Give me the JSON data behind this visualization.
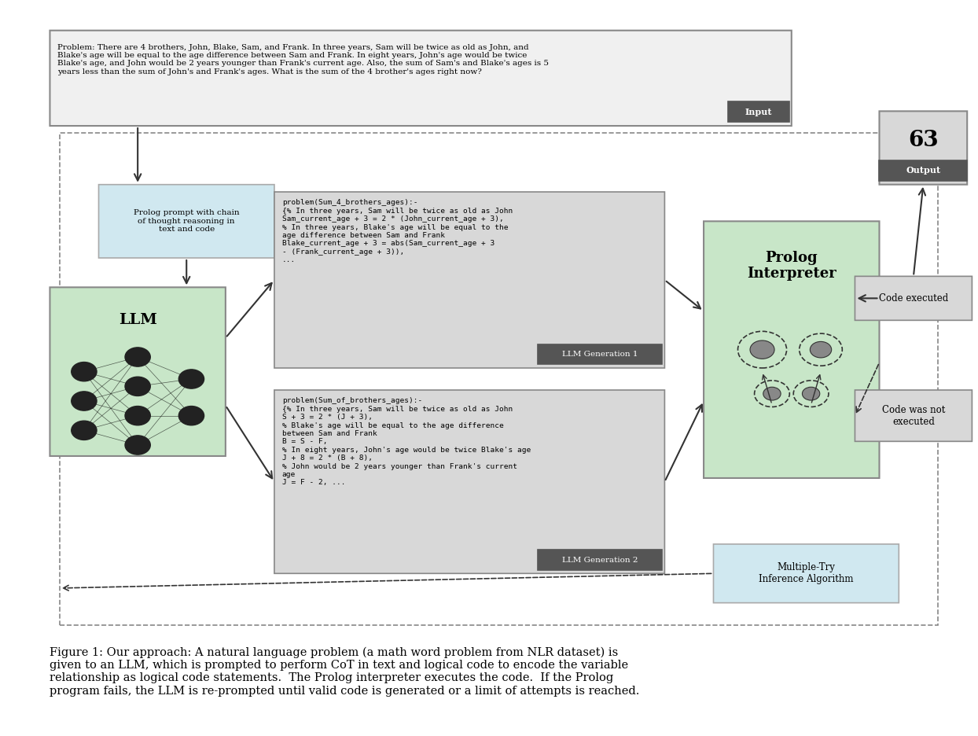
{
  "background_color": "#ffffff",
  "fig_width": 12.44,
  "fig_height": 9.36,
  "problem_text": "Problem: There are 4 brothers, John, Blake, Sam, and Frank. In three years, Sam will be twice as old as John, and\nBlake's age will be equal to the age difference between Sam and Frank. In eight years, John's age would be twice\nBlake's age, and John would be 2 years younger than Frank's current age. Also, the sum of Sam's and Blake's ages is 5\nyears less than the sum of John's and Frank's ages. What is the sum of the 4 brother's ages right now?",
  "prolog_prompt_text": "Prolog prompt with chain\nof thought reasoning in\ntext and code",
  "llm_gen1_text": "problem(Sum_4_brothers_ages):-\n{% In three years, Sam will be twice as old as John\nSam_current_age + 3 = 2 * (John_current_age + 3),\n% In three years, Blake's age will be equal to the\nage difference between Sam and Frank\nBlake_current_age + 3 = abs(Sam_current_age + 3\n- (Frank_current_age + 3)),\n...",
  "llm_gen2_text": "problem(Sum_of_brothers_ages):-\n{% In three years, Sam will be twice as old as John\nS + 3 = 2 * (J + 3),\n% Blake's age will be equal to the age difference\nbetween Sam and Frank\nB = S - F,\n% In eight years, John's age would be twice Blake's age\nJ + 8 = 2 * (B + 8),\n% John would be 2 years younger than Frank's current\nage\nJ = F - 2, ...",
  "llm_label": "LLM",
  "prolog_label": "Prolog\nInterpreter",
  "llm_gen1_label": "LLM Generation 1",
  "llm_gen2_label": "LLM Generation 2",
  "output_label": "Output",
  "input_label": "Input",
  "output_value": "63",
  "code_executed_label": "Code executed",
  "code_not_executed_label": "Code was not\nexecuted",
  "multiple_try_label": "Multiple-Try\nInference Algorithm",
  "caption": "Figure 1: Our approach: A natural language problem (a math word problem from NLR dataset) is\ngiven to an LLM, which is prompted to perform CoT in text and logical code to encode the variable\nrelationship as logical code statements.  The Prolog interpreter executes the code.  If the Prolog\nprogram fails, the LLM is re-prompted until valid code is generated or a limit of attempts is reached.",
  "colors": {
    "problem_box_bg": "#f0f0f0",
    "problem_box_border": "#888888",
    "input_label_bg": "#555555",
    "input_label_text": "#ffffff",
    "prolog_prompt_bg": "#d0e8f0",
    "prolog_prompt_border": "#aaaaaa",
    "llm_box_bg": "#c8e6c8",
    "llm_box_border": "#888888",
    "gen_box_bg": "#d8d8d8",
    "gen_box_border": "#888888",
    "gen_label_bg": "#555555",
    "gen_label_text": "#ffffff",
    "prolog_box_bg": "#c8e6c8",
    "prolog_box_border": "#888888",
    "output_box_bg": "#d8d8d8",
    "output_box_border": "#888888",
    "output_label_bg": "#555555",
    "output_label_text": "#ffffff",
    "code_exec_bg": "#d8d8d8",
    "code_exec_border": "#888888",
    "code_not_exec_bg": "#d8d8d8",
    "code_not_exec_border": "#888888",
    "multi_try_bg": "#d0e8f0",
    "multi_try_border": "#aaaaaa",
    "arrow_color": "#333333",
    "dashed_border": "#888888"
  }
}
